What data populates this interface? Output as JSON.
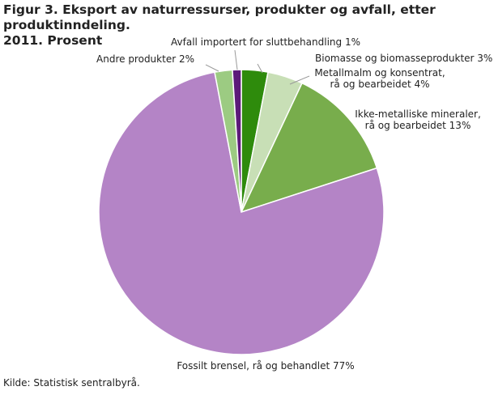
{
  "figure": {
    "title_line1": "Figur 3. Eksport av naturressurser, produkter og avfall, etter produktinndeling.",
    "title_line2": "2011. Prosent",
    "source": "Kilde: Statistisk sentralbyrå."
  },
  "chart_data": {
    "type": "pie",
    "title": "Figur 3. Eksport av naturressurser, produkter og avfall, etter produktinndeling. 2011. Prosent",
    "unit": "Prosent",
    "slices": [
      {
        "name": "Biomasse og biomasseprodukter",
        "value": 3,
        "color": "#2e8b0c",
        "label_lines": [
          "Biomasse og biomasseprodukter 3%"
        ]
      },
      {
        "name": "Metallmalm og konsentrat, rå og bearbeidet",
        "value": 4,
        "color": "#c8dfb6",
        "label_lines": [
          "Metallmalm og konsentrat,",
          "rå og bearbeidet 4%"
        ]
      },
      {
        "name": "Ikke-metalliske mineraler, rå og bearbeidet",
        "value": 13,
        "color": "#78ad4c",
        "label_lines": [
          "Ikke-metalliske mineraler,",
          "rå og bearbeidet 13%"
        ]
      },
      {
        "name": "Fossilt brensel, rå og behandlet",
        "value": 77,
        "color": "#b484c6",
        "label_lines": [
          "Fossilt brensel, rå og behandlet 77%"
        ]
      },
      {
        "name": "Andre produkter",
        "value": 2,
        "color": "#9ccb82",
        "label_lines": [
          "Andre produkter 2%"
        ]
      },
      {
        "name": "Avfall importert for sluttbehandling",
        "value": 1,
        "color": "#5c1a7a",
        "label_lines": [
          "Avfall importert for sluttbehandling 1%"
        ]
      }
    ]
  }
}
